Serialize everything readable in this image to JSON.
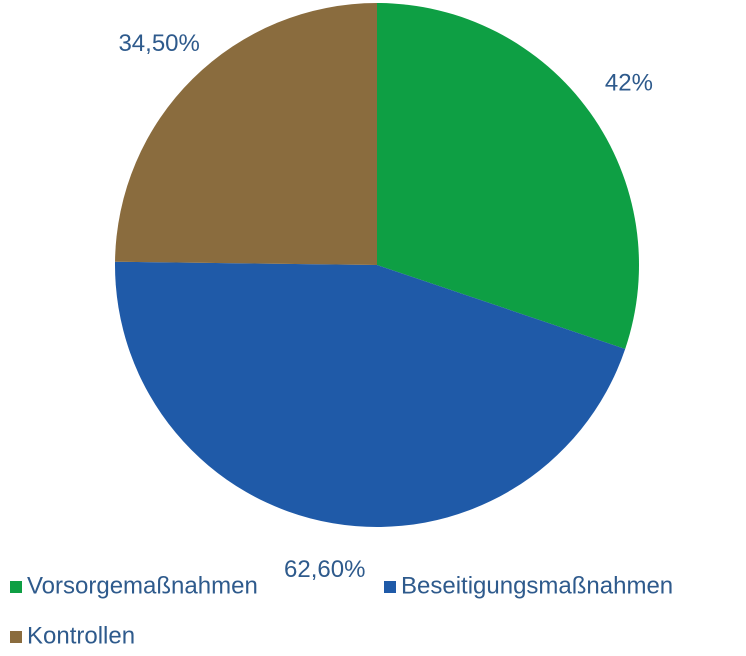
{
  "chart_data": {
    "type": "pie",
    "categories": [
      "Vorsorgemaßnahmen",
      "Beseitigungsmaßnahmen",
      "Kontrollen"
    ],
    "values": [
      42,
      62.6,
      34.5
    ],
    "value_labels": [
      "42%",
      "62,60%",
      "34,50%"
    ],
    "colors": [
      "#0e9f44",
      "#1f5aa8",
      "#8a6c3e"
    ],
    "legend": "bottom"
  }
}
